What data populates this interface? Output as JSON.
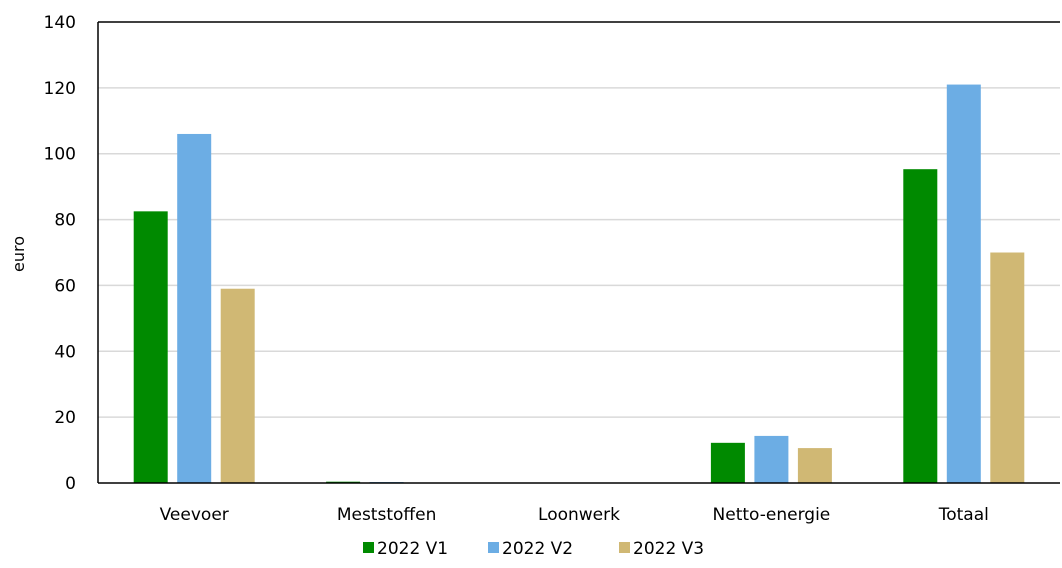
{
  "chart_data": {
    "type": "bar",
    "title": "",
    "xlabel": "",
    "ylabel": "euro",
    "ylim": [
      0,
      140
    ],
    "yticks": [
      0,
      20,
      40,
      60,
      80,
      100,
      120,
      140
    ],
    "grid": true,
    "legend_position": "bottom",
    "categories": [
      "Veevoer",
      "Meststoffen",
      "Loonwerk",
      "Netto-energie",
      "Totaal"
    ],
    "series": [
      {
        "name": "2022 V1",
        "color": "#008a00",
        "values": [
          82.5,
          0.4,
          0,
          12.2,
          95.3
        ]
      },
      {
        "name": "2022 V2",
        "color": "#6cade4",
        "values": [
          106,
          0.3,
          0,
          14.3,
          121
        ]
      },
      {
        "name": "2022 V3",
        "color": "#d0b874",
        "values": [
          59,
          0.1,
          0,
          10.6,
          70
        ]
      }
    ]
  }
}
